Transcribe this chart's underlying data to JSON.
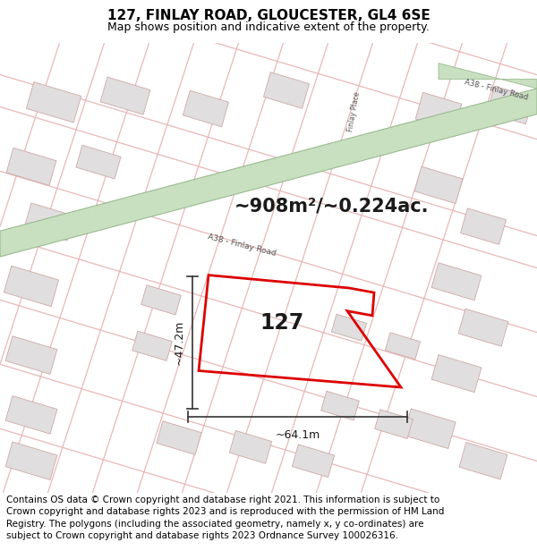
{
  "title_line1": "127, FINLAY ROAD, GLOUCESTER, GL4 6SE",
  "title_line2": "Map shows position and indicative extent of the property.",
  "footer_text": "Contains OS data © Crown copyright and database right 2021. This information is subject to Crown copyright and database rights 2023 and is reproduced with the permission of HM Land Registry. The polygons (including the associated geometry, namely x, y co-ordinates) are subject to Crown copyright and database rights 2023 Ordnance Survey 100026316.",
  "area_label": "~908m²/~0.224ac.",
  "property_label": "127",
  "dim_width": "~64.1m",
  "dim_height": "~47.2m",
  "road_label_main": "A38 - Finlay Road",
  "road_label_upper": "A38 - Finlay Road",
  "road_label_side": "A38 - Finlay Road",
  "finlay_place_label": "Finlay Place",
  "map_bg": "#f5f3f3",
  "road_green_color": "#c8dfc0",
  "road_green_border": "#9abb90",
  "street_color": "#e8b8b8",
  "property_edge": "#dd0000",
  "building_fill": "#e0dede",
  "building_edge": "#d0a8a8",
  "title_fontsize": 11,
  "subtitle_fontsize": 9,
  "footer_fontsize": 7.5
}
